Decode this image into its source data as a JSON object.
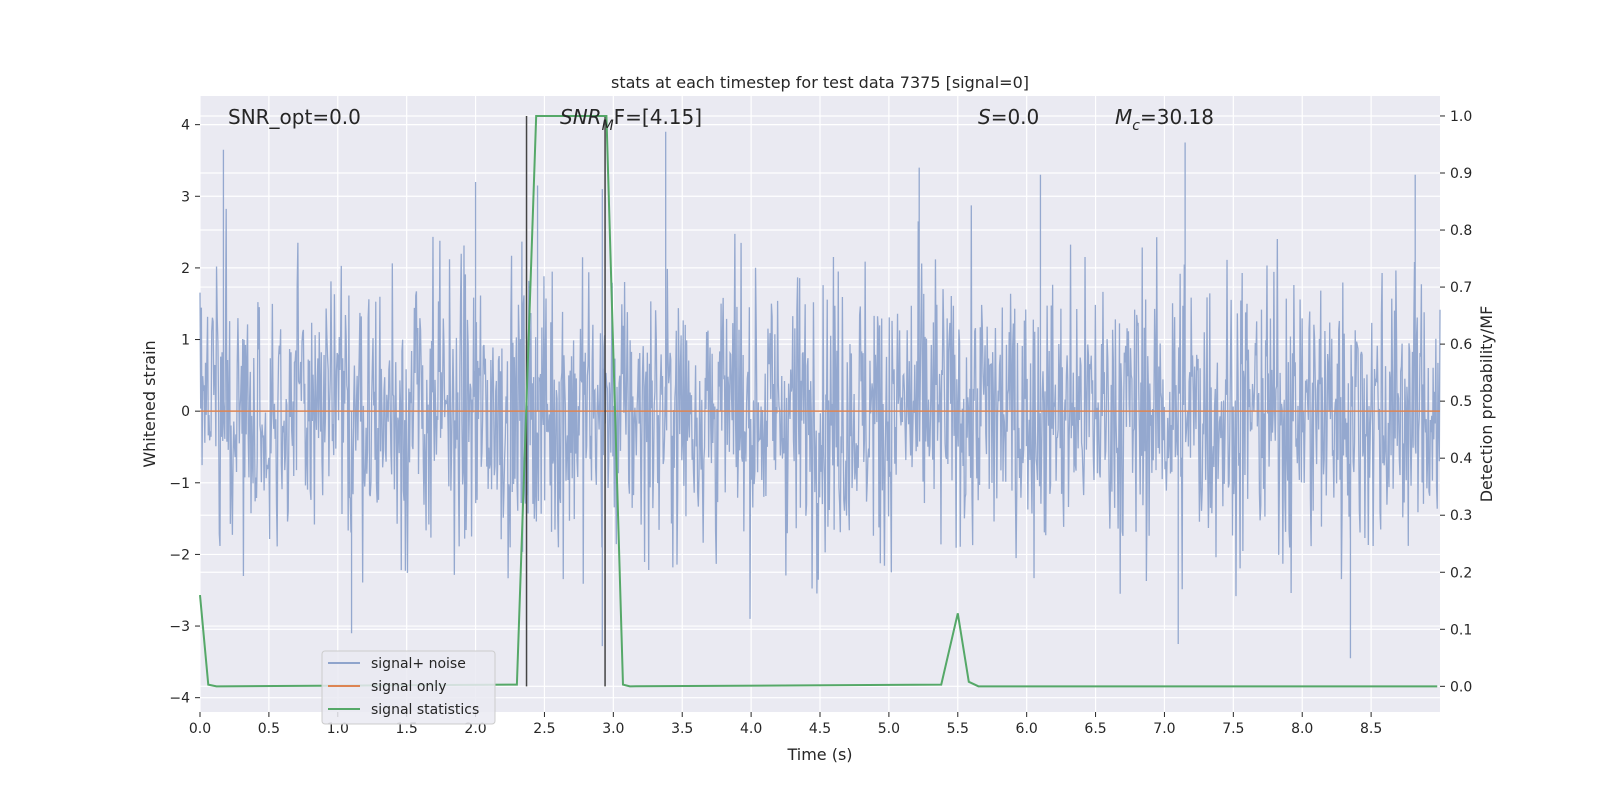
{
  "chart_data": {
    "type": "line",
    "title": "stats at each timestep for test data 7375 [signal=0]",
    "xlabel": "Time (s)",
    "ylabel_left": "Whitened strain",
    "ylabel_right": "Detection probability/MF",
    "xlim": [
      0.0,
      9.0
    ],
    "ylim_left": [
      -4.2,
      4.4
    ],
    "ylim_right": [
      -0.045,
      1.035
    ],
    "x_ticks": [
      0.0,
      0.5,
      1.0,
      1.5,
      2.0,
      2.5,
      3.0,
      3.5,
      4.0,
      4.5,
      5.0,
      5.5,
      6.0,
      6.5,
      7.0,
      7.5,
      8.0,
      8.5
    ],
    "x_tick_labels": [
      "0.0",
      "0.5",
      "1.0",
      "1.5",
      "2.0",
      "2.5",
      "3.0",
      "3.5",
      "4.0",
      "4.5",
      "5.0",
      "5.5",
      "6.0",
      "6.5",
      "7.0",
      "7.5",
      "8.0",
      "8.5"
    ],
    "y_left_ticks": [
      -4,
      -3,
      -2,
      -1,
      0,
      1,
      2,
      3,
      4
    ],
    "y_left_tick_labels": [
      "−4",
      "−3",
      "−2",
      "−1",
      "0",
      "1",
      "2",
      "3",
      "4"
    ],
    "y_right_ticks": [
      0.0,
      0.1,
      0.2,
      0.3,
      0.4,
      0.5,
      0.6,
      0.7,
      0.8,
      0.9,
      1.0
    ],
    "y_right_tick_labels": [
      "0.0",
      "0.1",
      "0.2",
      "0.3",
      "0.4",
      "0.5",
      "0.6",
      "0.7",
      "0.8",
      "0.9",
      "1.0"
    ],
    "grid": true,
    "legend_position": "lower-left",
    "series": [
      {
        "name": "signal+ noise",
        "color": "#8fa4cc",
        "axis": "left",
        "description_values": "dense noise",
        "y_range_typical": [
          -2.5,
          2.5
        ],
        "notable_peaks": [
          {
            "x": 0.17,
            "y": 3.65
          },
          {
            "x": 2.0,
            "y": 3.2
          },
          {
            "x": 2.45,
            "y": 3.15
          },
          {
            "x": 2.92,
            "y": 3.1
          },
          {
            "x": 3.38,
            "y": 3.9
          },
          {
            "x": 5.22,
            "y": 3.4
          },
          {
            "x": 6.1,
            "y": 3.3
          },
          {
            "x": 7.15,
            "y": 3.75
          },
          {
            "x": 8.82,
            "y": 3.3
          },
          {
            "x": 1.1,
            "y": -3.1
          },
          {
            "x": 2.92,
            "y": -3.28
          },
          {
            "x": 7.1,
            "y": -3.25
          },
          {
            "x": 8.35,
            "y": -3.45
          }
        ]
      },
      {
        "name": "signal only",
        "color": "#dd8452",
        "axis": "left",
        "x": [
          0.0,
          9.0
        ],
        "y": [
          0.0,
          0.0
        ]
      },
      {
        "name": "signal statistics",
        "color": "#55a868",
        "axis": "right",
        "x": [
          0.0,
          0.06,
          0.12,
          2.3,
          2.37,
          2.44,
          2.95,
          3.07,
          3.12,
          5.38,
          5.5,
          5.58,
          5.65,
          8.98
        ],
        "y": [
          0.16,
          0.003,
          0.0,
          0.003,
          0.5,
          1.0,
          1.0,
          0.003,
          0.0,
          0.003,
          0.128,
          0.008,
          0.0,
          0.0
        ]
      }
    ],
    "vlines": [
      {
        "x": 2.37,
        "y_range": [
          0.0,
          1.0
        ]
      },
      {
        "x": 2.94,
        "y_range": [
          0.0,
          1.0
        ]
      }
    ],
    "annotations": [
      {
        "id": "snr-opt",
        "text": "SNR_opt=0.0",
        "x": 0.2,
        "y": 4.05
      },
      {
        "id": "snr-mf",
        "text": "SNR_MF=[4.15]",
        "x": 2.6,
        "y": 4.05
      },
      {
        "id": "s-val",
        "text": "S=0.0",
        "x": 5.6,
        "y": 4.05
      },
      {
        "id": "mc-val",
        "text": "M_c=30.18",
        "x": 6.6,
        "y": 4.05
      }
    ]
  },
  "annotations_text": {
    "snr_opt": "SNR_opt=0.0",
    "snr_mf_main": "SNR",
    "snr_mf_sub": "M",
    "snr_mf_rest": "F=[4.15]",
    "s_main": "S",
    "s_rest": "=0.0",
    "mc_main": "M",
    "mc_sub": "c",
    "mc_rest": "=30.18"
  },
  "colors": {
    "background": "#eaeaf2",
    "grid": "#ffffff",
    "vline": "#444444"
  }
}
